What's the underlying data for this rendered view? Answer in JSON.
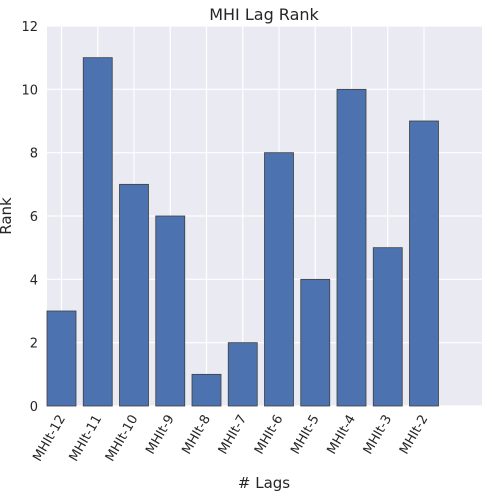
{
  "chart_data": {
    "type": "bar",
    "title": "MHI Lag Rank",
    "xlabel": "# Lags",
    "ylabel": "Rank",
    "categories": [
      "MHIt-12",
      "MHIt-11",
      "MHIt-10",
      "MHIt-9",
      "MHIt-8",
      "MHIt-7",
      "MHIt-6",
      "MHIt-5",
      "MHIt-4",
      "MHIt-3",
      "MHIt-2"
    ],
    "values": [
      3,
      11,
      7,
      6,
      1,
      2,
      8,
      4,
      10,
      5,
      9
    ],
    "ylim": [
      0,
      12
    ],
    "yticks": [
      0,
      2,
      4,
      6,
      8,
      10,
      12
    ],
    "grid": true,
    "colors": {
      "bar": "#4c72b0",
      "bar_edge": "#3f3f3f",
      "plot_background": "#eaeaf2",
      "grid": "#ffffff",
      "text": "#262626"
    }
  }
}
